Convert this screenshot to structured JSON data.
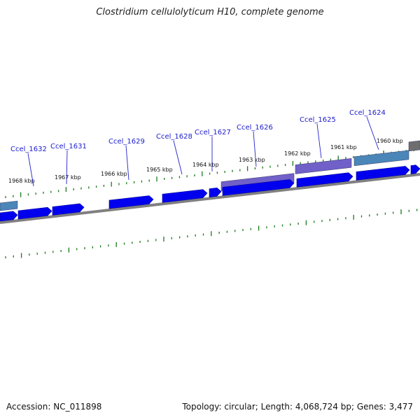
{
  "title": "Clostridium cellulolyticum H10, complete genome",
  "footer": {
    "accession": "Accession: NC_011898",
    "summary": "Topology: circular; Length: 4,068,724 bp; Genes: 3,477"
  },
  "kbp_labels": [
    "1968 kbp",
    "1967 kbp",
    "1966 kbp",
    "1965 kbp",
    "1964 kbp",
    "1963 kbp",
    "1962 kbp",
    "1961 kbp",
    "1960 kbp"
  ],
  "gene_labels": [
    "Ccel_1632",
    "Ccel_1631",
    "Ccel_1629",
    "Ccel_1628",
    "Ccel_1627",
    "Ccel_1626",
    "Ccel_1625",
    "Ccel_1624"
  ],
  "colors": {
    "cds": "#0000ee",
    "backbone": "#808080",
    "tick": "#1a7a1a",
    "leader": "#2222cc",
    "purple_feature": "#7060c8",
    "steel_feature": "#4a86b8",
    "grey_feature": "#6e6e6e"
  }
}
